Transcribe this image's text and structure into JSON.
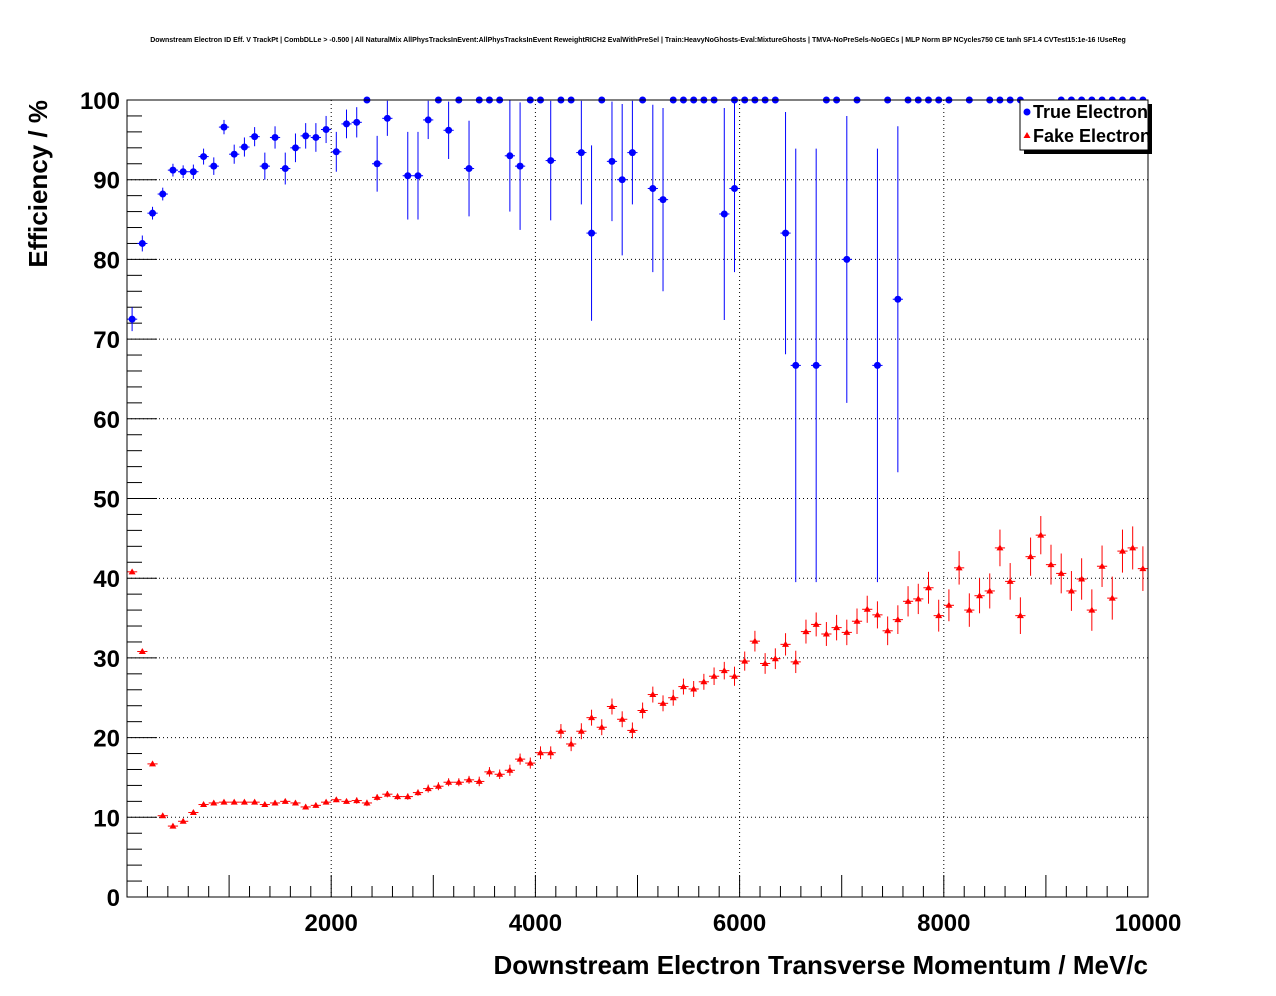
{
  "chart_data": {
    "type": "scatter",
    "title": "Downstream Electron ID Eff. V TrackPt | CombDLLe > -0.500 | All NaturalMix AllPhysTracksInEvent:AllPhysTracksInEvent ReweightRICH2 EvalWithPreSel | Train:HeavyNoGhosts-Eval:MixtureGhosts | TMVA-NoPreSels-NoGECs | MLP Norm BP NCycles750 CE tanh SF1.4 CVTest15:1e-16 !UseReg",
    "xlabel": "Downstream Electron Transverse Momentum / MeV/c",
    "ylabel": "Efficiency / %",
    "xlim": [
      0,
      10000
    ],
    "ylim": [
      0,
      100
    ],
    "x_ticks": [
      2000,
      4000,
      6000,
      8000,
      10000
    ],
    "y_ticks": [
      0,
      10,
      20,
      30,
      40,
      50,
      60,
      70,
      80,
      90,
      100
    ],
    "grid": true,
    "legend_position": "top-right",
    "bin_half_width": 50,
    "series": [
      {
        "name": "True Electron",
        "color": "#0000ff",
        "marker": "circle",
        "points": [
          {
            "x": 50,
            "y": 72.5,
            "err": 1.5
          },
          {
            "x": 150,
            "y": 82,
            "err": 1
          },
          {
            "x": 250,
            "y": 85.8,
            "err": 0.8
          },
          {
            "x": 350,
            "y": 88.2,
            "err": 0.8
          },
          {
            "x": 450,
            "y": 91.2,
            "err": 0.8
          },
          {
            "x": 550,
            "y": 91,
            "err": 0.8
          },
          {
            "x": 650,
            "y": 91,
            "err": 0.9
          },
          {
            "x": 750,
            "y": 92.9,
            "err": 1
          },
          {
            "x": 850,
            "y": 91.7,
            "err": 1.1
          },
          {
            "x": 950,
            "y": 96.6,
            "err": 0.9
          },
          {
            "x": 1050,
            "y": 93.2,
            "err": 1.2
          },
          {
            "x": 1150,
            "y": 94.1,
            "err": 1.2
          },
          {
            "x": 1250,
            "y": 95.4,
            "err": 1.2
          },
          {
            "x": 1350,
            "y": 91.7,
            "err": 1.7
          },
          {
            "x": 1450,
            "y": 95.3,
            "err": 1.4
          },
          {
            "x": 1550,
            "y": 91.4,
            "err": 2
          },
          {
            "x": 1650,
            "y": 94,
            "err": 1.8
          },
          {
            "x": 1750,
            "y": 95.5,
            "err": 1.6
          },
          {
            "x": 1850,
            "y": 95.3,
            "err": 1.8
          },
          {
            "x": 1950,
            "y": 96.3,
            "err": 1.7
          },
          {
            "x": 2050,
            "y": 93.5,
            "err": 2.5
          },
          {
            "x": 2150,
            "y": 97,
            "err": 1.8
          },
          {
            "x": 2250,
            "y": 97.2,
            "err": 1.9
          },
          {
            "x": 2350,
            "y": 100,
            "err": 0
          },
          {
            "x": 2450,
            "y": 92,
            "err": 3.5
          },
          {
            "x": 2550,
            "y": 97.7,
            "err": 2.2
          },
          {
            "x": 2750,
            "y": 90.5,
            "err": 5.5
          },
          {
            "x": 2850,
            "y": 90.5,
            "err": 5.5
          },
          {
            "x": 2950,
            "y": 97.5,
            "err": 2.4
          },
          {
            "x": 3050,
            "y": 100,
            "err": 0
          },
          {
            "x": 3150,
            "y": 96.2,
            "err": 3.6
          },
          {
            "x": 3250,
            "y": 100,
            "err": 0
          },
          {
            "x": 3350,
            "y": 91.4,
            "err": 6
          },
          {
            "x": 3450,
            "y": 100,
            "err": 0
          },
          {
            "x": 3550,
            "y": 100,
            "err": 0
          },
          {
            "x": 3650,
            "y": 100,
            "err": 0
          },
          {
            "x": 3750,
            "y": 93,
            "err": 7
          },
          {
            "x": 3850,
            "y": 91.7,
            "err": 8
          },
          {
            "x": 3950,
            "y": 100,
            "err": 0
          },
          {
            "x": 4050,
            "y": 100,
            "err": 0
          },
          {
            "x": 4150,
            "y": 92.4,
            "err": 7.5
          },
          {
            "x": 4250,
            "y": 100,
            "err": 0
          },
          {
            "x": 4350,
            "y": 100,
            "err": 0
          },
          {
            "x": 4450,
            "y": 93.4,
            "err": 6.5
          },
          {
            "x": 4550,
            "y": 83.3,
            "err": 11
          },
          {
            "x": 4650,
            "y": 100,
            "err": 0
          },
          {
            "x": 4750,
            "y": 92.3,
            "err": 7.5
          },
          {
            "x": 4850,
            "y": 90,
            "err": 9.5
          },
          {
            "x": 4950,
            "y": 93.4,
            "err": 6.5
          },
          {
            "x": 5050,
            "y": 100,
            "err": 0
          },
          {
            "x": 5150,
            "y": 88.9,
            "err": 10.5
          },
          {
            "x": 5250,
            "y": 87.5,
            "err": 11.5
          },
          {
            "x": 5350,
            "y": 100,
            "err": 0
          },
          {
            "x": 5450,
            "y": 100,
            "err": 0
          },
          {
            "x": 5550,
            "y": 100,
            "err": 0
          },
          {
            "x": 5650,
            "y": 100,
            "err": 0
          },
          {
            "x": 5750,
            "y": 100,
            "err": 0
          },
          {
            "x": 5850,
            "y": 85.7,
            "err": 13.3
          },
          {
            "x": 5950,
            "y": 100,
            "err": 3
          },
          {
            "x": 5950,
            "y": 88.9,
            "err": 10.5
          },
          {
            "x": 6050,
            "y": 100,
            "err": 0
          },
          {
            "x": 6150,
            "y": 100,
            "err": 0
          },
          {
            "x": 6250,
            "y": 100,
            "err": 0
          },
          {
            "x": 6350,
            "y": 100,
            "err": 0
          },
          {
            "x": 6450,
            "y": 83.3,
            "err": 15.2
          },
          {
            "x": 6550,
            "y": 66.7,
            "err": 27.2
          },
          {
            "x": 6750,
            "y": 66.7,
            "err": 27.2
          },
          {
            "x": 6850,
            "y": 100,
            "err": 0
          },
          {
            "x": 6950,
            "y": 100,
            "err": 0
          },
          {
            "x": 7050,
            "y": 80,
            "err": 18
          },
          {
            "x": 7150,
            "y": 100,
            "err": 0
          },
          {
            "x": 7350,
            "y": 66.7,
            "err": 27.2
          },
          {
            "x": 7450,
            "y": 100,
            "err": 0
          },
          {
            "x": 7550,
            "y": 75,
            "err": 21.7
          },
          {
            "x": 7650,
            "y": 100,
            "err": 0
          },
          {
            "x": 7750,
            "y": 100,
            "err": 0
          },
          {
            "x": 7850,
            "y": 100,
            "err": 0
          },
          {
            "x": 7950,
            "y": 100,
            "err": 0
          },
          {
            "x": 8050,
            "y": 100,
            "err": 0
          },
          {
            "x": 8250,
            "y": 100,
            "err": 0
          },
          {
            "x": 8450,
            "y": 100,
            "err": 0
          },
          {
            "x": 8550,
            "y": 100,
            "err": 0
          },
          {
            "x": 8650,
            "y": 100,
            "err": 0
          },
          {
            "x": 8750,
            "y": 100,
            "err": 0
          },
          {
            "x": 9150,
            "y": 100,
            "err": 0
          },
          {
            "x": 9250,
            "y": 100,
            "err": 0
          },
          {
            "x": 9350,
            "y": 100,
            "err": 0
          },
          {
            "x": 9450,
            "y": 100,
            "err": 0
          },
          {
            "x": 9550,
            "y": 100,
            "err": 0
          },
          {
            "x": 9650,
            "y": 100,
            "err": 0
          },
          {
            "x": 9750,
            "y": 100,
            "err": 0
          },
          {
            "x": 9850,
            "y": 100,
            "err": 0
          },
          {
            "x": 9950,
            "y": 100,
            "err": 0
          }
        ]
      },
      {
        "name": "Fake Electron",
        "color": "#ff0000",
        "marker": "triangle",
        "points": [
          {
            "x": 50,
            "y": 40.8,
            "err": 0.2
          },
          {
            "x": 150,
            "y": 30.8,
            "err": 0.2
          },
          {
            "x": 250,
            "y": 16.7,
            "err": 0.2
          },
          {
            "x": 350,
            "y": 10.2,
            "err": 0.2
          },
          {
            "x": 450,
            "y": 8.9,
            "err": 0.2
          },
          {
            "x": 550,
            "y": 9.5,
            "err": 0.2
          },
          {
            "x": 650,
            "y": 10.6,
            "err": 0.2
          },
          {
            "x": 750,
            "y": 11.6,
            "err": 0.2
          },
          {
            "x": 850,
            "y": 11.8,
            "err": 0.2
          },
          {
            "x": 950,
            "y": 11.9,
            "err": 0.2
          },
          {
            "x": 1050,
            "y": 11.9,
            "err": 0.2
          },
          {
            "x": 1150,
            "y": 11.9,
            "err": 0.3
          },
          {
            "x": 1250,
            "y": 11.9,
            "err": 0.3
          },
          {
            "x": 1350,
            "y": 11.6,
            "err": 0.3
          },
          {
            "x": 1450,
            "y": 11.8,
            "err": 0.3
          },
          {
            "x": 1550,
            "y": 12,
            "err": 0.3
          },
          {
            "x": 1650,
            "y": 11.8,
            "err": 0.3
          },
          {
            "x": 1750,
            "y": 11.3,
            "err": 0.3
          },
          {
            "x": 1850,
            "y": 11.5,
            "err": 0.3
          },
          {
            "x": 1950,
            "y": 11.9,
            "err": 0.3
          },
          {
            "x": 2050,
            "y": 12.2,
            "err": 0.3
          },
          {
            "x": 2150,
            "y": 12,
            "err": 0.3
          },
          {
            "x": 2250,
            "y": 12.1,
            "err": 0.4
          },
          {
            "x": 2350,
            "y": 11.8,
            "err": 0.4
          },
          {
            "x": 2450,
            "y": 12.5,
            "err": 0.4
          },
          {
            "x": 2550,
            "y": 12.9,
            "err": 0.4
          },
          {
            "x": 2650,
            "y": 12.6,
            "err": 0.4
          },
          {
            "x": 2750,
            "y": 12.6,
            "err": 0.4
          },
          {
            "x": 2850,
            "y": 13.1,
            "err": 0.4
          },
          {
            "x": 2950,
            "y": 13.6,
            "err": 0.5
          },
          {
            "x": 3050,
            "y": 13.9,
            "err": 0.5
          },
          {
            "x": 3150,
            "y": 14.4,
            "err": 0.5
          },
          {
            "x": 3250,
            "y": 14.4,
            "err": 0.5
          },
          {
            "x": 3350,
            "y": 14.7,
            "err": 0.5
          },
          {
            "x": 3450,
            "y": 14.5,
            "err": 0.6
          },
          {
            "x": 3550,
            "y": 15.7,
            "err": 0.6
          },
          {
            "x": 3650,
            "y": 15.4,
            "err": 0.6
          },
          {
            "x": 3750,
            "y": 15.9,
            "err": 0.7
          },
          {
            "x": 3850,
            "y": 17.3,
            "err": 0.7
          },
          {
            "x": 3950,
            "y": 16.8,
            "err": 0.7
          },
          {
            "x": 4050,
            "y": 18.1,
            "err": 0.8
          },
          {
            "x": 4150,
            "y": 18.1,
            "err": 0.8
          },
          {
            "x": 4250,
            "y": 20.8,
            "err": 0.9
          },
          {
            "x": 4350,
            "y": 19.2,
            "err": 0.9
          },
          {
            "x": 4450,
            "y": 20.8,
            "err": 1
          },
          {
            "x": 4550,
            "y": 22.5,
            "err": 1
          },
          {
            "x": 4650,
            "y": 21.3,
            "err": 1
          },
          {
            "x": 4750,
            "y": 23.9,
            "err": 1
          },
          {
            "x": 4850,
            "y": 22.3,
            "err": 1
          },
          {
            "x": 4950,
            "y": 20.9,
            "err": 1
          },
          {
            "x": 5050,
            "y": 23.4,
            "err": 1
          },
          {
            "x": 5150,
            "y": 25.4,
            "err": 1
          },
          {
            "x": 5250,
            "y": 24.3,
            "err": 1
          },
          {
            "x": 5350,
            "y": 25,
            "err": 1
          },
          {
            "x": 5450,
            "y": 26.4,
            "err": 1
          },
          {
            "x": 5550,
            "y": 26.1,
            "err": 1
          },
          {
            "x": 5650,
            "y": 27,
            "err": 1
          },
          {
            "x": 5750,
            "y": 27.7,
            "err": 1.1
          },
          {
            "x": 5850,
            "y": 28.4,
            "err": 1.1
          },
          {
            "x": 5950,
            "y": 27.7,
            "err": 1.2
          },
          {
            "x": 6050,
            "y": 29.6,
            "err": 1.2
          },
          {
            "x": 6150,
            "y": 32.1,
            "err": 1.3
          },
          {
            "x": 6250,
            "y": 29.3,
            "err": 1.3
          },
          {
            "x": 6350,
            "y": 29.9,
            "err": 1.3
          },
          {
            "x": 6450,
            "y": 31.7,
            "err": 1.4
          },
          {
            "x": 6550,
            "y": 29.5,
            "err": 1.4
          },
          {
            "x": 6650,
            "y": 33.3,
            "err": 1.5
          },
          {
            "x": 6750,
            "y": 34.2,
            "err": 1.5
          },
          {
            "x": 6850,
            "y": 33,
            "err": 1.5
          },
          {
            "x": 6950,
            "y": 33.8,
            "err": 1.6
          },
          {
            "x": 7050,
            "y": 33.2,
            "err": 1.6
          },
          {
            "x": 7150,
            "y": 34.6,
            "err": 1.6
          },
          {
            "x": 7250,
            "y": 36.1,
            "err": 1.7
          },
          {
            "x": 7350,
            "y": 35.4,
            "err": 1.7
          },
          {
            "x": 7450,
            "y": 33.4,
            "err": 1.8
          },
          {
            "x": 7550,
            "y": 34.8,
            "err": 1.8
          },
          {
            "x": 7650,
            "y": 37.1,
            "err": 1.9
          },
          {
            "x": 7750,
            "y": 37.4,
            "err": 1.9
          },
          {
            "x": 7850,
            "y": 38.8,
            "err": 2
          },
          {
            "x": 7950,
            "y": 35.3,
            "err": 2
          },
          {
            "x": 8050,
            "y": 36.6,
            "err": 2
          },
          {
            "x": 8150,
            "y": 41.3,
            "err": 2.1
          },
          {
            "x": 8250,
            "y": 36,
            "err": 2.1
          },
          {
            "x": 8350,
            "y": 37.8,
            "err": 2.2
          },
          {
            "x": 8450,
            "y": 38.4,
            "err": 2.2
          },
          {
            "x": 8550,
            "y": 43.8,
            "err": 2.3
          },
          {
            "x": 8650,
            "y": 39.6,
            "err": 2.3
          },
          {
            "x": 8750,
            "y": 35.3,
            "err": 2.3
          },
          {
            "x": 8850,
            "y": 42.7,
            "err": 2.4
          },
          {
            "x": 8950,
            "y": 45.4,
            "err": 2.4
          },
          {
            "x": 9050,
            "y": 41.7,
            "err": 2.5
          },
          {
            "x": 9150,
            "y": 40.6,
            "err": 2.5
          },
          {
            "x": 9250,
            "y": 38.4,
            "err": 2.5
          },
          {
            "x": 9350,
            "y": 39.9,
            "err": 2.6
          },
          {
            "x": 9450,
            "y": 36,
            "err": 2.6
          },
          {
            "x": 9550,
            "y": 41.5,
            "err": 2.6
          },
          {
            "x": 9650,
            "y": 37.5,
            "err": 2.7
          },
          {
            "x": 9750,
            "y": 43.4,
            "err": 2.7
          },
          {
            "x": 9850,
            "y": 43.8,
            "err": 2.7
          },
          {
            "x": 9950,
            "y": 41.2,
            "err": 2.8
          }
        ]
      }
    ]
  }
}
